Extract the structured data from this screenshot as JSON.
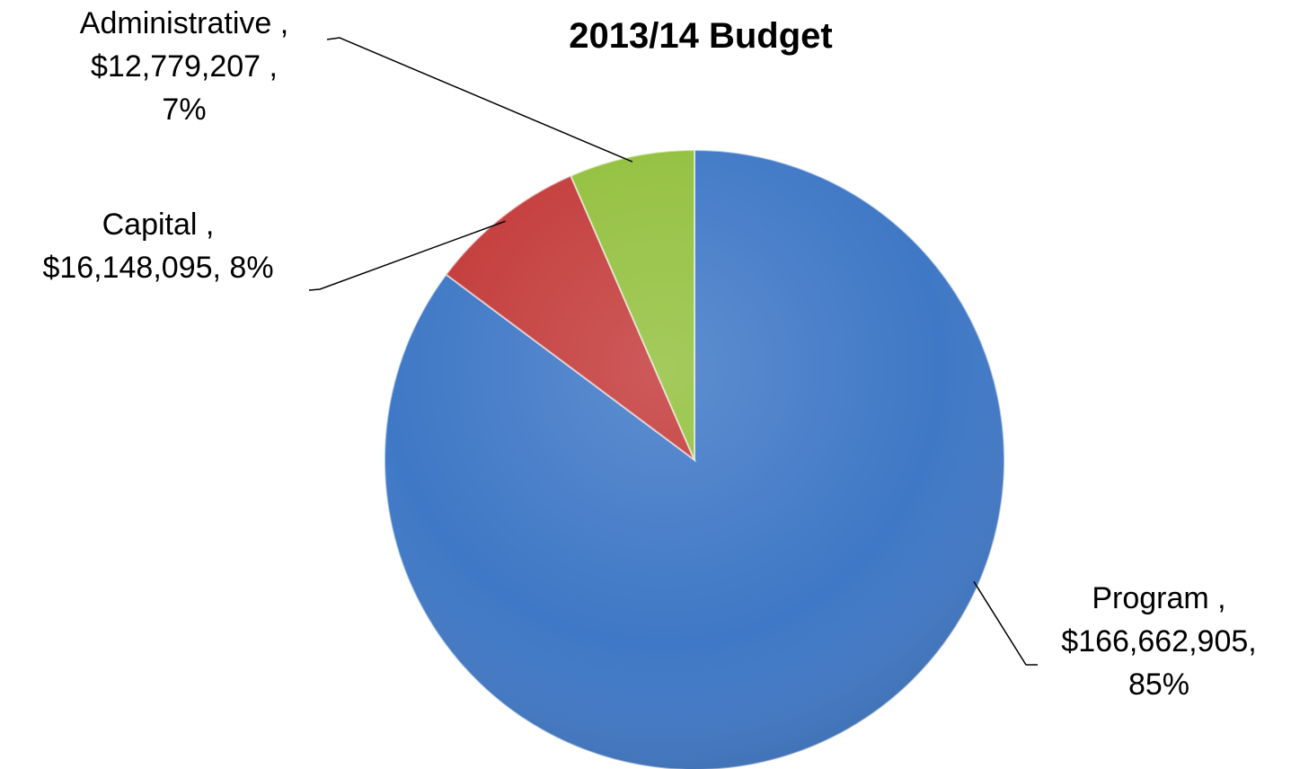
{
  "chart_data": {
    "type": "pie",
    "title": "2013/14 Budget",
    "start_angle": "12 o'clock",
    "direction": "clockwise",
    "slices": [
      {
        "name": "Program",
        "value": 166662905,
        "percent": 85,
        "color": "#3f78c6",
        "label_lines": [
          "Program ,",
          "$166,662,905,",
          "85%"
        ]
      },
      {
        "name": "Capital",
        "value": 16148095,
        "percent": 8,
        "color": "#c33b3a",
        "label_lines": [
          "Capital ,",
          "$16,148,095, 8%"
        ]
      },
      {
        "name": "Administrative",
        "value": 12779207,
        "percent": 7,
        "color": "#92c03d",
        "label_lines": [
          "Administrative ,",
          "$12,779,207 ,",
          "7%"
        ]
      }
    ]
  }
}
